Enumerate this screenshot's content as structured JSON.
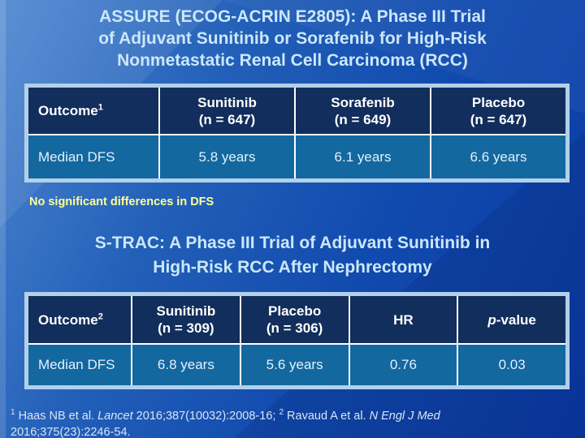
{
  "slide": {
    "assure_title_lines": [
      "ASSURE (ECOG-ACRIN E2805): A Phase III Trial",
      "of Adjuvant Sunitinib or Sorafenib for High-Risk",
      "Nonmetastatic Renal Cell Carcinoma (RCC)"
    ],
    "note": "No significant differences in DFS",
    "strac_title_lines": [
      "S-TRAC: A Phase III Trial of Adjuvant Sunitinib in",
      "High-Risk RCC After Nephrectomy"
    ]
  },
  "assure_table": {
    "header": {
      "outcome_label": "Outcome",
      "outcome_sup": "1",
      "col1_drug": "Sunitinib",
      "col1_n": "(n = 647)",
      "col2_drug": "Sorafenib",
      "col2_n": "(n = 649)",
      "col3_drug": "Placebo",
      "col3_n": "(n = 647)"
    },
    "row": {
      "label": "Median DFS",
      "col1": "5.8 years",
      "col2": "6.1 years",
      "col3": "6.6 years"
    }
  },
  "strac_table": {
    "header": {
      "outcome_label": "Outcome",
      "outcome_sup": "2",
      "col1_drug": "Sunitinib",
      "col1_n": "(n = 309)",
      "col2_drug": "Placebo",
      "col2_n": "(n = 306)",
      "hr": "HR",
      "p_italic": "p",
      "p_rest": "-value"
    },
    "row": {
      "label": "Median DFS",
      "col1": "6.8 years",
      "col2": "5.6 years",
      "hr": "0.76",
      "p": "0.03"
    }
  },
  "footnote": {
    "sup1": "1",
    "seg1": " Haas NB et al. ",
    "ital1": "Lancet",
    "seg2": " 2016;387(10032):2008-16; ",
    "sup2": "2",
    "seg3": " Ravaud A et al. ",
    "ital2": "N Engl J Med",
    "line2": "2016;375(23):2246-54."
  },
  "colors": {
    "background_top_left": "#4e87d1",
    "background_bottom_right": "#0a3aa3",
    "table_frame": "#b3d0e9",
    "table_header_bg": "#112e5c",
    "table_data_bg": "#1368a0",
    "cell_border": "#ffffff",
    "title_text": "#cbe7f9",
    "note_text": "#ffff99",
    "footnote_text": "#d9e5f6"
  }
}
